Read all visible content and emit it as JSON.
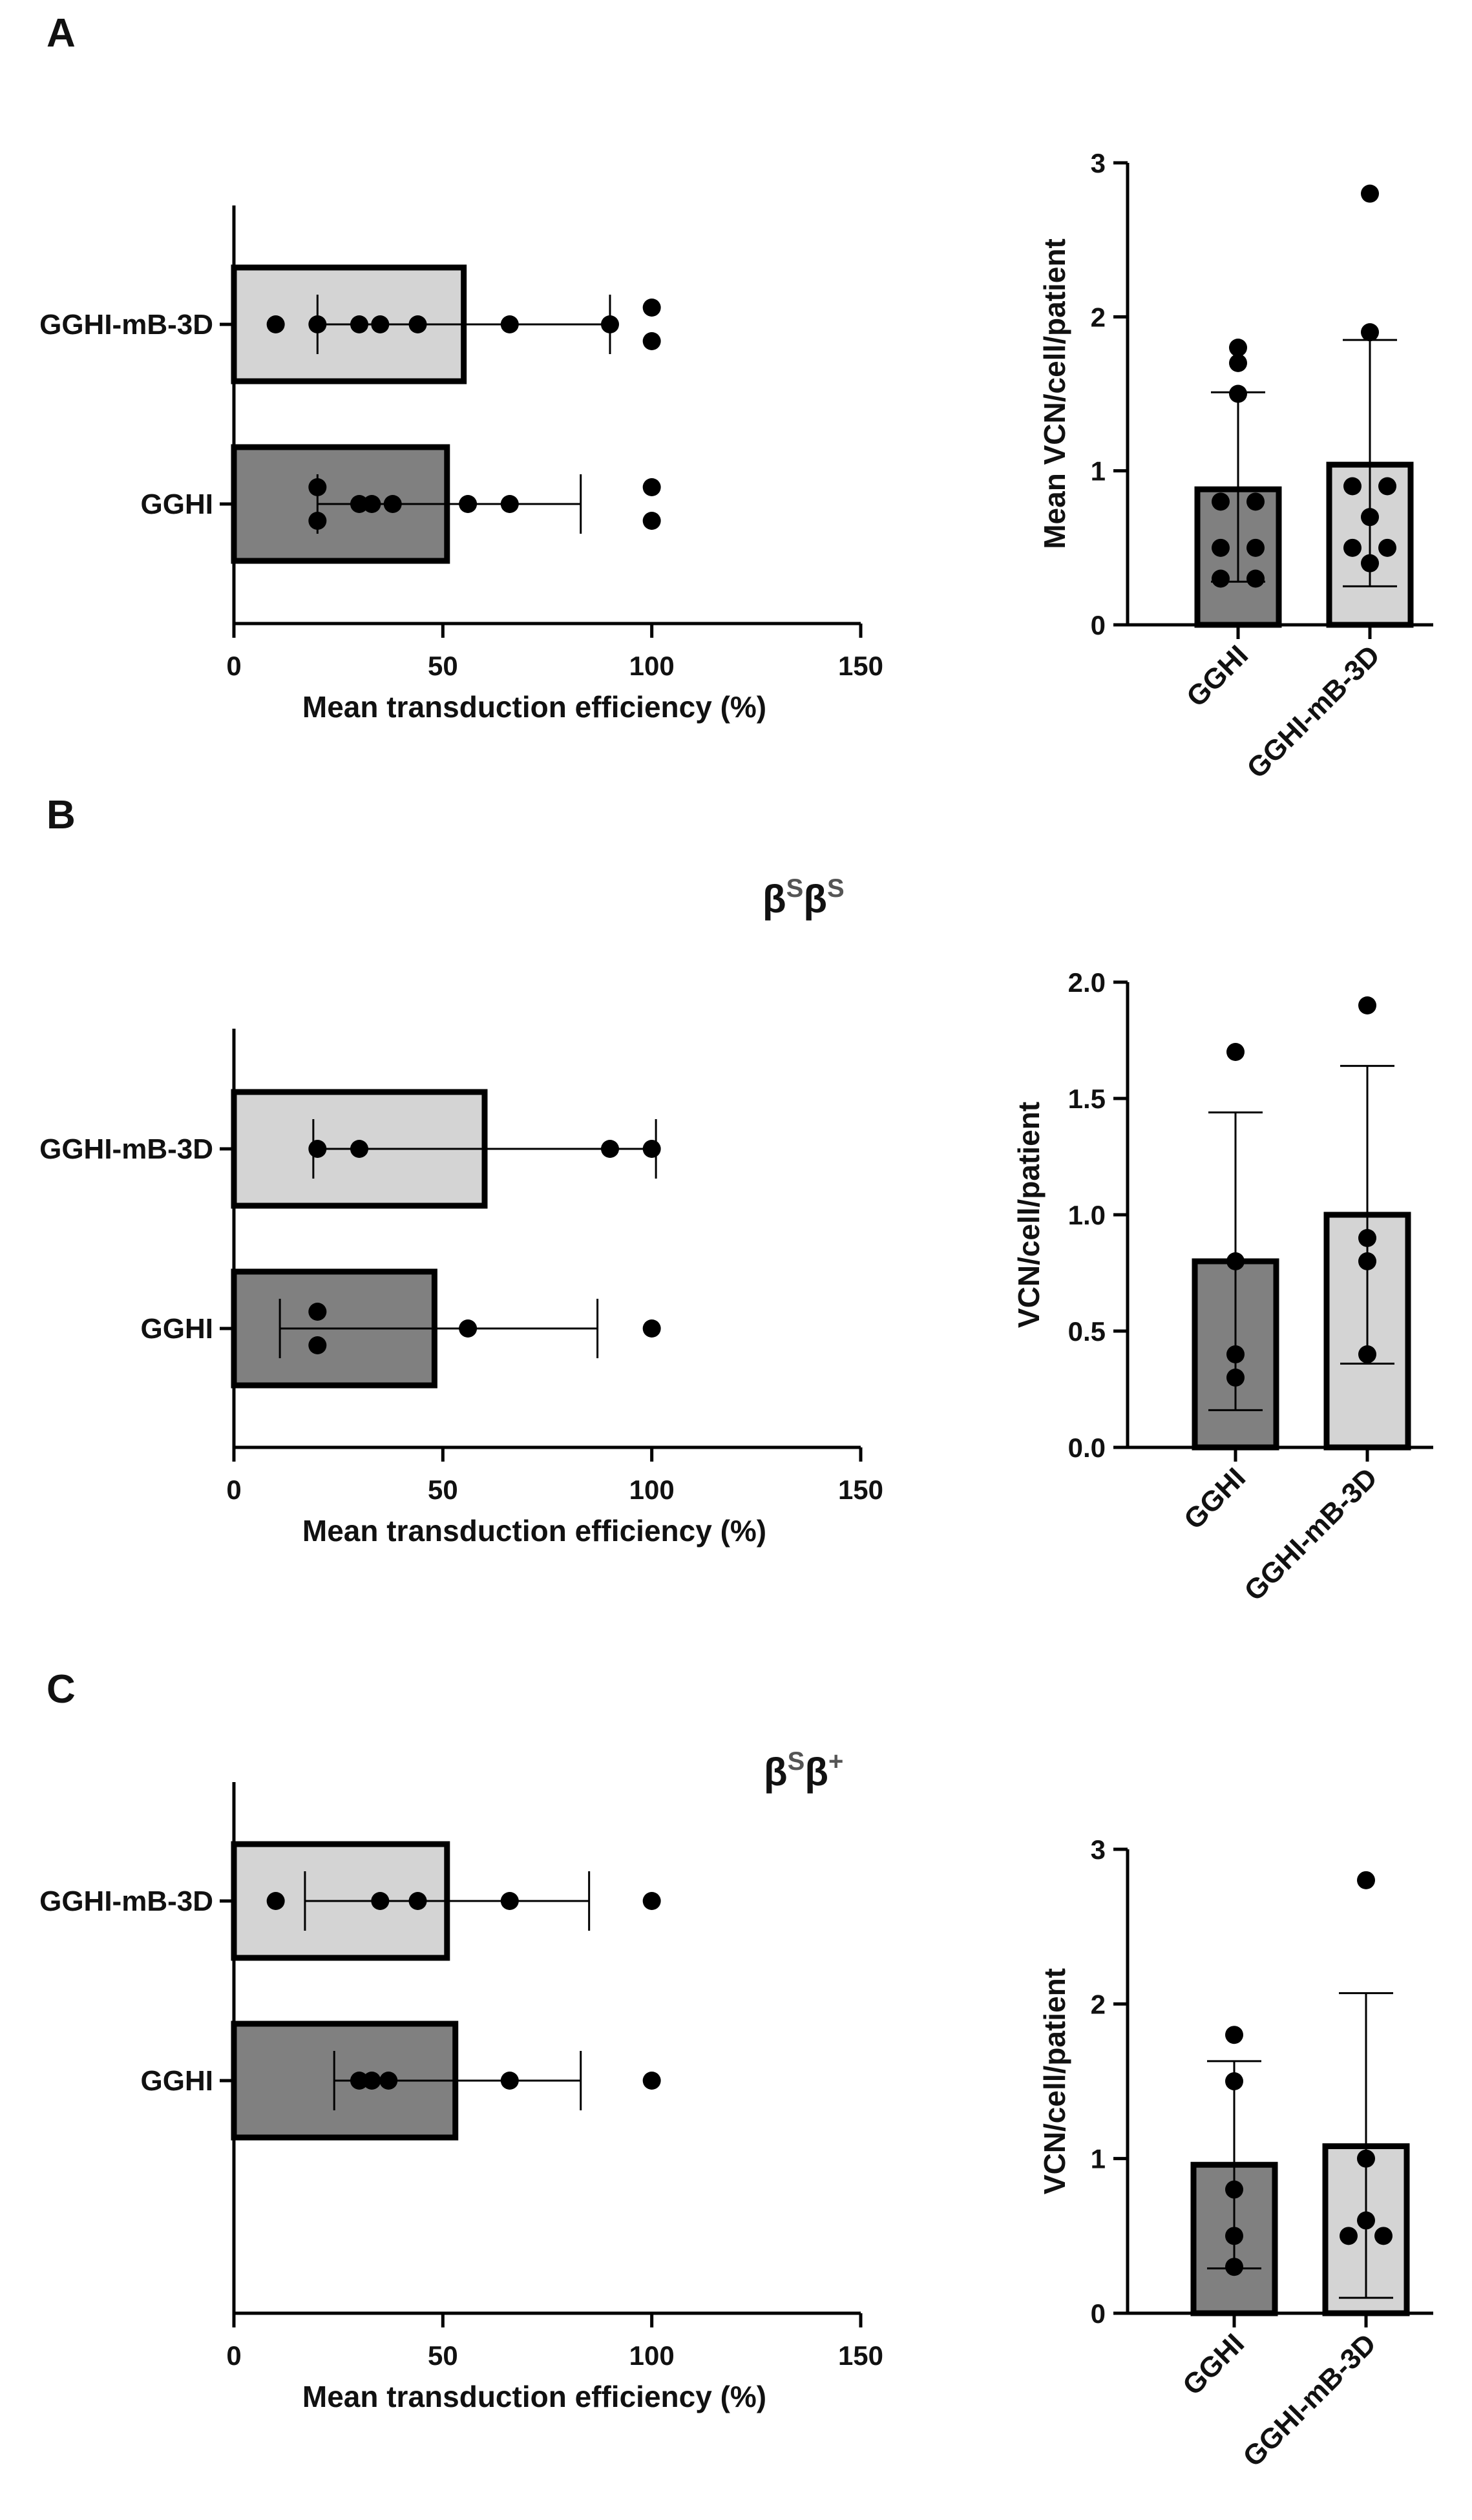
{
  "colors": {
    "gghi_bar": "#808080",
    "gghi_mb3d_bar": "#d4d4d4",
    "bar_border": "#000000",
    "point": "#000000",
    "genotype_title": "#555555"
  },
  "panels": [
    {
      "label": "A",
      "genotype": null,
      "charts": []
    },
    {
      "label": "B",
      "genotype": {
        "base1": "β",
        "sup1": "S",
        "base2": "β",
        "sup2": "S"
      }
    },
    {
      "label": "C",
      "genotype": {
        "base1": "β",
        "sup1": "S",
        "base2": "β",
        "sup2": "+"
      }
    }
  ],
  "chart_data": [
    {
      "panel": "A",
      "type": "bar",
      "orientation": "horizontal",
      "title": "",
      "xlabel": "Mean transduction efficiency (%)",
      "ylabel": "",
      "xlim": [
        0,
        150
      ],
      "xticks": [
        "0",
        "50",
        "100",
        "150"
      ],
      "categories": [
        "GGHI-mB-3D",
        "GGHI"
      ],
      "means": [
        55,
        51
      ],
      "error_low": [
        20,
        20
      ],
      "error_high": [
        90,
        83
      ],
      "points": [
        [
          10,
          20,
          30,
          35,
          44,
          66,
          90,
          100,
          100
        ],
        [
          20,
          20,
          30,
          33,
          38,
          56,
          66,
          100,
          100
        ]
      ]
    },
    {
      "panel": "A",
      "type": "bar",
      "orientation": "vertical",
      "title": "",
      "xlabel": "",
      "ylabel": "Mean VCN/cell/patient",
      "ylim": [
        0,
        3
      ],
      "yticks": [
        "0",
        "1",
        "2",
        "3"
      ],
      "categories": [
        "GGHI",
        "GGHI-mB-3D"
      ],
      "means": [
        0.88,
        1.04
      ],
      "error_low": [
        0.28,
        0.25
      ],
      "error_high": [
        1.51,
        1.85
      ],
      "points": [
        [
          0.3,
          0.3,
          0.5,
          0.5,
          0.8,
          0.8,
          1.5,
          1.7,
          1.8
        ],
        [
          0.4,
          0.5,
          0.5,
          0.7,
          0.9,
          0.9,
          1.9,
          2.8
        ]
      ]
    },
    {
      "panel": "B",
      "type": "bar",
      "orientation": "horizontal",
      "title": "",
      "xlabel": "Mean transduction efficiency (%)",
      "ylabel": "",
      "xlim": [
        0,
        150
      ],
      "xticks": [
        "0",
        "50",
        "100",
        "150"
      ],
      "categories": [
        "GGHI-mB-3D",
        "GGHI"
      ],
      "means": [
        60,
        48
      ],
      "error_low": [
        19,
        11
      ],
      "error_high": [
        101,
        87
      ],
      "points": [
        [
          20,
          30,
          90,
          100
        ],
        [
          20,
          20,
          56,
          100
        ]
      ]
    },
    {
      "panel": "B",
      "type": "bar",
      "orientation": "vertical",
      "title": "",
      "xlabel": "",
      "ylabel": "VCN/cell/patient",
      "ylim": [
        0,
        2
      ],
      "yticks": [
        "0.0",
        "0.5",
        "1.0",
        "1.5",
        "2.0"
      ],
      "categories": [
        "GGHI",
        "GGHI-mB-3D"
      ],
      "means": [
        0.8,
        1.0
      ],
      "error_low": [
        0.16,
        0.36
      ],
      "error_high": [
        1.44,
        1.64
      ],
      "points": [
        [
          0.3,
          0.4,
          0.8,
          1.7
        ],
        [
          0.4,
          0.8,
          0.9,
          1.9
        ]
      ]
    },
    {
      "panel": "C",
      "type": "bar",
      "orientation": "horizontal",
      "title": "",
      "xlabel": "Mean transduction efficiency (%)",
      "ylabel": "",
      "xlim": [
        0,
        150
      ],
      "xticks": [
        "0",
        "50",
        "100",
        "150"
      ],
      "categories": [
        "GGHI-mB-3D",
        "GGHI"
      ],
      "means": [
        51,
        53
      ],
      "error_low": [
        17,
        24
      ],
      "error_high": [
        85,
        83
      ],
      "points": [
        [
          10,
          35,
          44,
          66,
          100
        ],
        [
          30,
          33,
          37,
          66,
          100
        ]
      ]
    },
    {
      "panel": "C",
      "type": "bar",
      "orientation": "vertical",
      "title": "",
      "xlabel": "",
      "ylabel": "VCN/cell/patient",
      "ylim": [
        0,
        3
      ],
      "yticks": [
        "0",
        "1",
        "2",
        "3"
      ],
      "categories": [
        "GGHI",
        "GGHI-mB-3D"
      ],
      "means": [
        0.96,
        1.08
      ],
      "error_low": [
        0.29,
        0.1
      ],
      "error_high": [
        1.63,
        2.07
      ],
      "points": [
        [
          0.3,
          0.5,
          0.8,
          1.5,
          1.8
        ],
        [
          0.5,
          0.5,
          0.6,
          1.0,
          2.8
        ]
      ]
    }
  ]
}
